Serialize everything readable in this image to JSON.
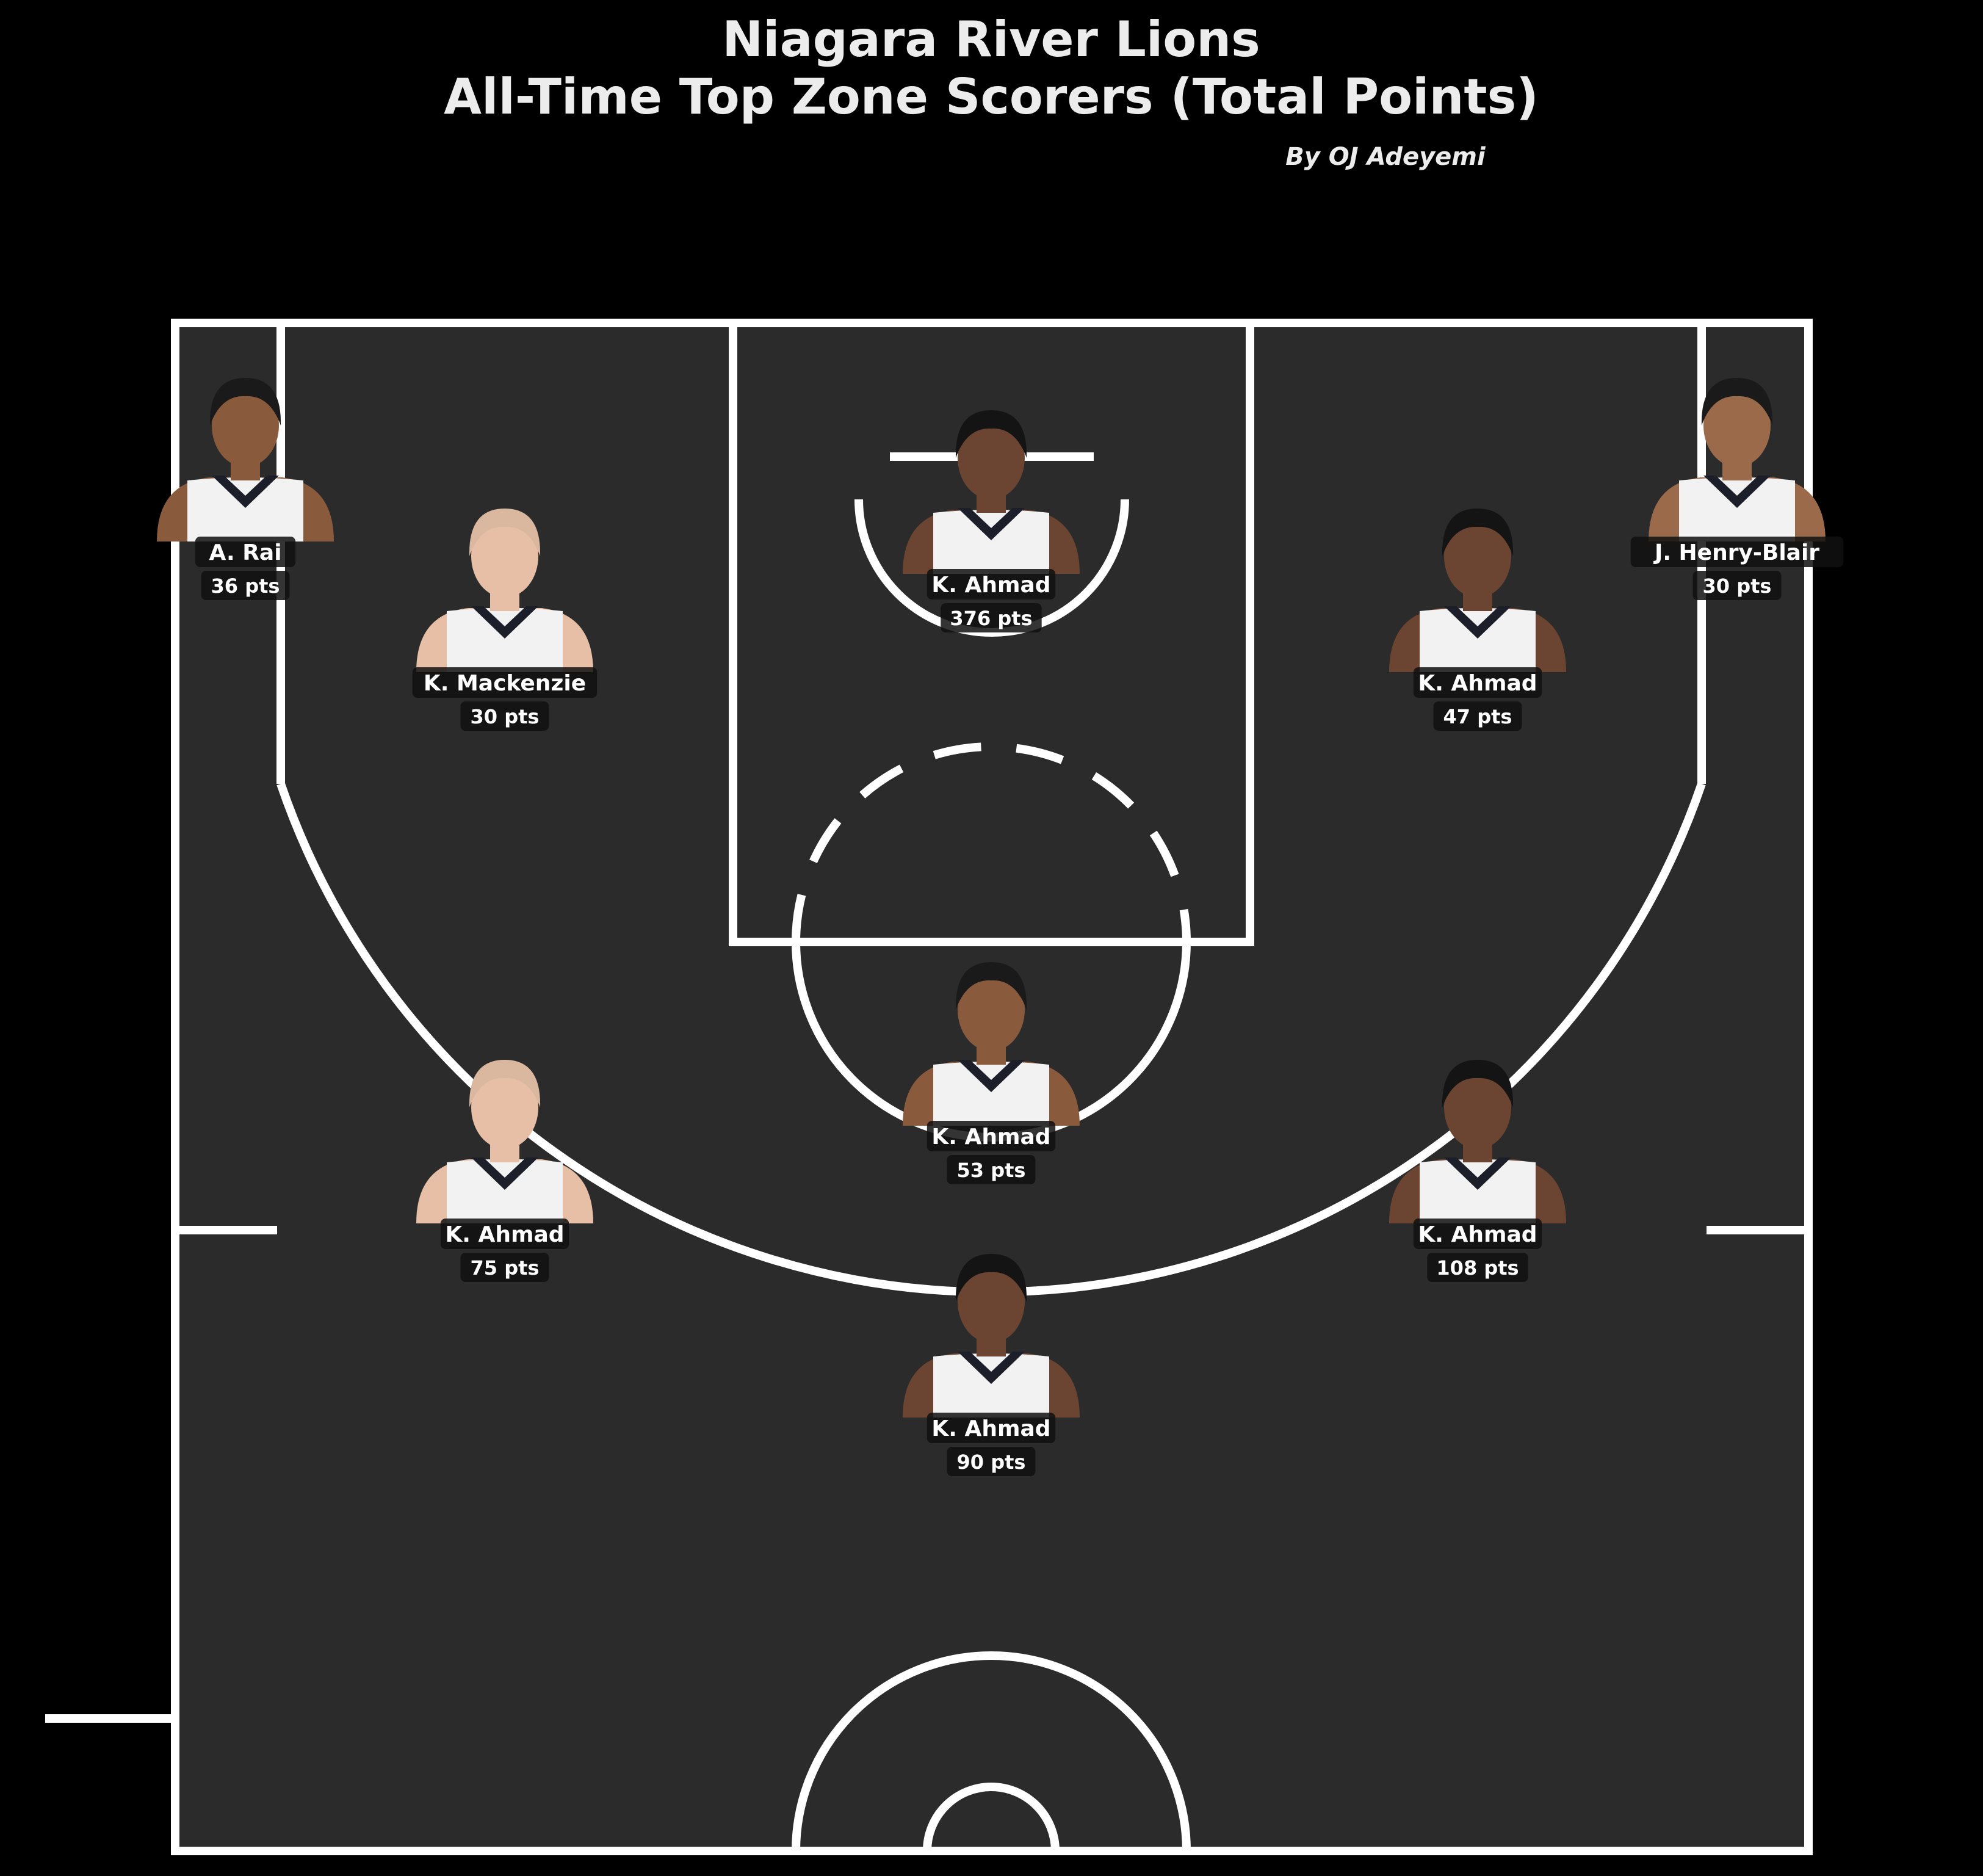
{
  "chart_data": {
    "type": "shot-zone-map",
    "title": "Niagara River Lions",
    "subtitle": "All-Time Top Zone Scorers (Total Points)",
    "byline": "By OJ Adeyemi",
    "zones": [
      {
        "zone": "left-corner-3",
        "player": "A. Rai",
        "points": 36,
        "points_label": "36 pts"
      },
      {
        "zone": "left-wing-mid-range",
        "player": "K. Mackenzie",
        "points": 30,
        "points_label": "30 pts"
      },
      {
        "zone": "restricted-area",
        "player": "K. Ahmad",
        "points": 376,
        "points_label": "376 pts"
      },
      {
        "zone": "right-wing-mid-range",
        "player": "K. Ahmad",
        "points": 47,
        "points_label": "47 pts"
      },
      {
        "zone": "right-corner-3",
        "player": "J. Henry-Blair",
        "points": 30,
        "points_label": "30 pts"
      },
      {
        "zone": "free-throw-mid-range",
        "player": "K. Ahmad",
        "points": 53,
        "points_label": "53 pts"
      },
      {
        "zone": "left-wing-3",
        "player": "K. Ahmad",
        "points": 75,
        "points_label": "75 pts"
      },
      {
        "zone": "right-wing-3",
        "player": "K. Ahmad",
        "points": 108,
        "points_label": "108 pts"
      },
      {
        "zone": "top-of-key-3",
        "player": "K. Ahmad",
        "points": 90,
        "points_label": "90 pts"
      }
    ],
    "colors": {
      "background": "#000000",
      "court": "#2b2b2b",
      "lines": "#ffffff",
      "text": "#ffffff",
      "label_box": "#111111"
    }
  }
}
